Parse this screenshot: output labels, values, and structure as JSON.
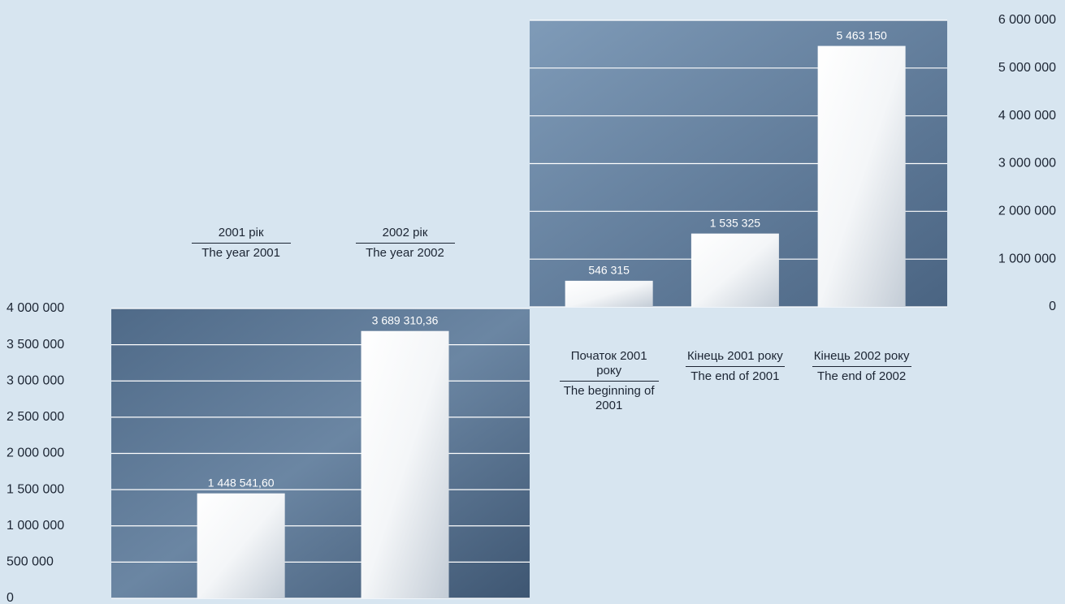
{
  "chart_data": [
    {
      "type": "bar",
      "categories": [
        "2001 рік",
        "2002 рік"
      ],
      "categories_en": [
        "The year 2001",
        "The year 2002"
      ],
      "values": [
        1448541.6,
        3689310.36
      ],
      "value_labels": [
        "1 448 541,60",
        "3 689 310,36"
      ],
      "ylim": [
        0,
        4000000
      ],
      "yticks": [
        {
          "value": 0,
          "label": "0"
        },
        {
          "value": 500000,
          "label": "500 000"
        },
        {
          "value": 1000000,
          "label": "1 000 000"
        },
        {
          "value": 1500000,
          "label": "1 500 000"
        },
        {
          "value": 2000000,
          "label": "2 000 000"
        },
        {
          "value": 2500000,
          "label": "2 500 000"
        },
        {
          "value": 3000000,
          "label": "3 000 000"
        },
        {
          "value": 3500000,
          "label": "3 500 000"
        },
        {
          "value": 4000000,
          "label": "4 000 000"
        }
      ],
      "grid": true
    },
    {
      "type": "bar",
      "categories": [
        "Початок 2001 року",
        "Кінець 2001 року",
        "Кінець 2002 року"
      ],
      "categories_en": [
        "The beginning of 2001",
        "The end of 2001",
        "The end of 2002"
      ],
      "values": [
        546315,
        1535325,
        5463150
      ],
      "value_labels": [
        "546 315",
        "1 535 325",
        "5 463 150"
      ],
      "ylim": [
        0,
        6000000
      ],
      "yticks": [
        {
          "value": 0,
          "label": "0"
        },
        {
          "value": 1000000,
          "label": "1 000 000"
        },
        {
          "value": 2000000,
          "label": "2 000 000"
        },
        {
          "value": 3000000,
          "label": "3 000 000"
        },
        {
          "value": 4000000,
          "label": "4 000 000"
        },
        {
          "value": 5000000,
          "label": "5 000 000"
        },
        {
          "value": 6000000,
          "label": "6 000 000"
        }
      ],
      "grid": true
    }
  ]
}
